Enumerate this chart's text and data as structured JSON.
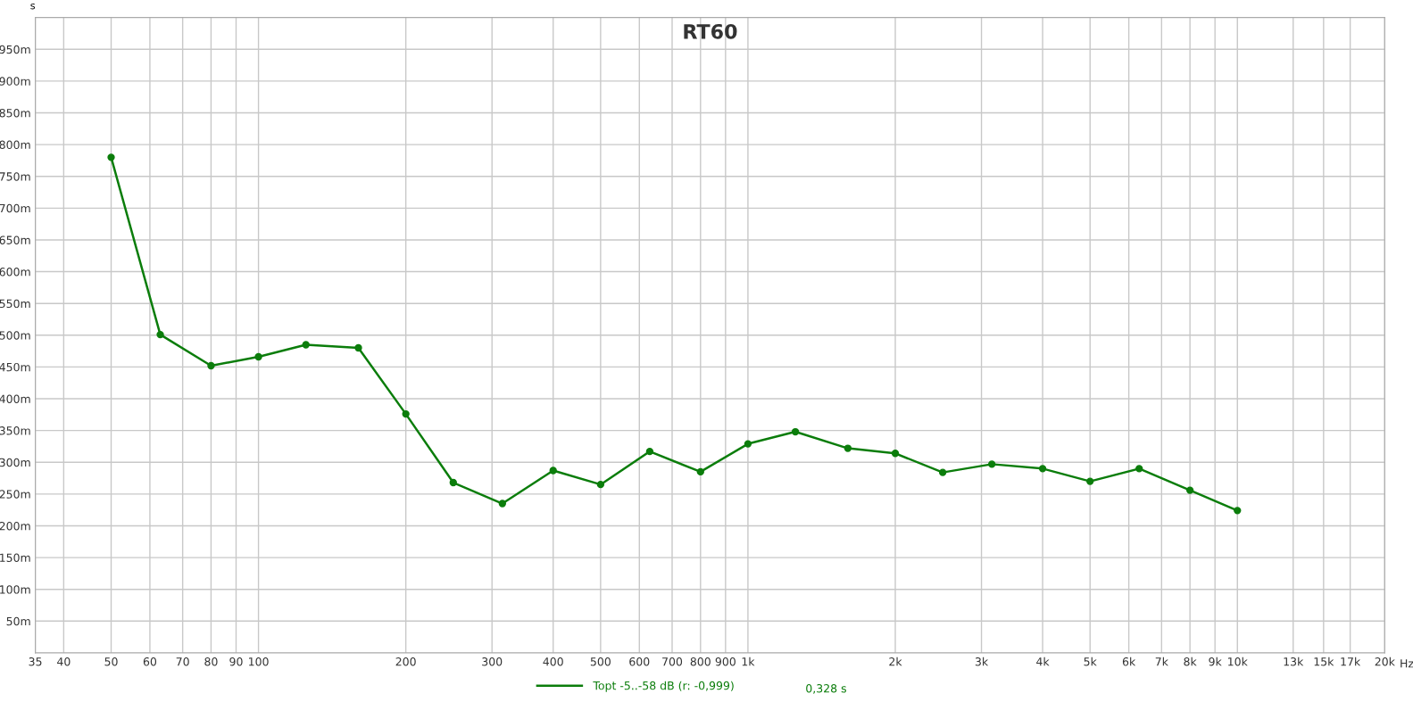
{
  "chart_data": {
    "type": "line",
    "title": "RT60",
    "ylabel": "s",
    "xlabel": "Hz",
    "x": [
      50,
      63,
      80,
      100,
      125,
      160,
      200,
      250,
      315,
      400,
      500,
      630,
      800,
      1000,
      1250,
      1600,
      2000,
      2500,
      3150,
      4000,
      5000,
      6300,
      8000,
      10000
    ],
    "series": [
      {
        "name": "Topt -5..-58 dB (r: -0,999)",
        "color": "#0b7d0b",
        "values": [
          780,
          501,
          452,
          466,
          485,
          480,
          376,
          268,
          235,
          287,
          265,
          317,
          285,
          329,
          348,
          322,
          314,
          284,
          297,
          290,
          270,
          290,
          256,
          224
        ]
      }
    ],
    "log": "x",
    "xlim": [
      35,
      20000
    ],
    "xticks": [
      35,
      40,
      50,
      60,
      70,
      80,
      90,
      100,
      200,
      300,
      400,
      500,
      600,
      700,
      800,
      900,
      {
        "value": 1000,
        "label": "1k"
      },
      {
        "value": 2000,
        "label": "2k"
      },
      {
        "value": 3000,
        "label": "3k"
      },
      {
        "value": 4000,
        "label": "4k"
      },
      {
        "value": 5000,
        "label": "5k"
      },
      {
        "value": 6000,
        "label": "6k"
      },
      {
        "value": 7000,
        "label": "7k"
      },
      {
        "value": 8000,
        "label": "8k"
      },
      {
        "value": 9000,
        "label": "9k"
      },
      {
        "value": 10000,
        "label": "10k"
      },
      {
        "value": 13000,
        "label": "13k"
      },
      {
        "value": 15000,
        "label": "15k"
      },
      {
        "value": 17000,
        "label": "17k"
      },
      {
        "value": 20000,
        "label": "20k"
      }
    ],
    "ylim": [
      0,
      1000
    ],
    "yticks": [
      {
        "value": 50,
        "label": "50m"
      },
      {
        "value": 100,
        "label": "100m"
      },
      {
        "value": 150,
        "label": "150m"
      },
      {
        "value": 200,
        "label": "200m"
      },
      {
        "value": 250,
        "label": "250m"
      },
      {
        "value": 300,
        "label": "300m"
      },
      {
        "value": 350,
        "label": "350m"
      },
      {
        "value": 400,
        "label": "400m"
      },
      {
        "value": 450,
        "label": "450m"
      },
      {
        "value": 500,
        "label": "500m"
      },
      {
        "value": 550,
        "label": "550m"
      },
      {
        "value": 600,
        "label": "600m"
      },
      {
        "value": 650,
        "label": "650m"
      },
      {
        "value": 700,
        "label": "700m"
      },
      {
        "value": 750,
        "label": "750m"
      },
      {
        "value": 800,
        "label": "800m"
      },
      {
        "value": 850,
        "label": "850m"
      },
      {
        "value": 900,
        "label": "900m"
      },
      {
        "value": 950,
        "label": "950m"
      }
    ],
    "grid": true,
    "legend": "bottom",
    "marker": "circle",
    "line_style": "solid",
    "annotations": [
      "0,328 s"
    ]
  }
}
